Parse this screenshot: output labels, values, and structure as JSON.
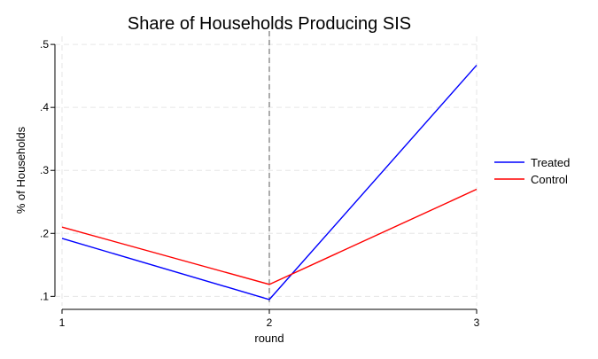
{
  "chart_data": {
    "type": "line",
    "title": "Share of Households Producing SIS",
    "xlabel": "round",
    "ylabel": "% of Households",
    "x": [
      1,
      2,
      3
    ],
    "xticks": [
      "1",
      "2",
      "3"
    ],
    "yticks": [
      ".1",
      ".2",
      ".3",
      ".4",
      ".5"
    ],
    "yticks_values": [
      0.1,
      0.2,
      0.3,
      0.4,
      0.5
    ],
    "xlim": [
      1,
      3
    ],
    "ylim": [
      0.085,
      0.51
    ],
    "grid": true,
    "reference_line_x": 2,
    "legend_position": "right",
    "series": [
      {
        "name": "Treated",
        "color": "#0000ff",
        "values": [
          0.192,
          0.095,
          0.467
        ]
      },
      {
        "name": "Control",
        "color": "#ff0000",
        "values": [
          0.21,
          0.119,
          0.27
        ]
      }
    ]
  }
}
